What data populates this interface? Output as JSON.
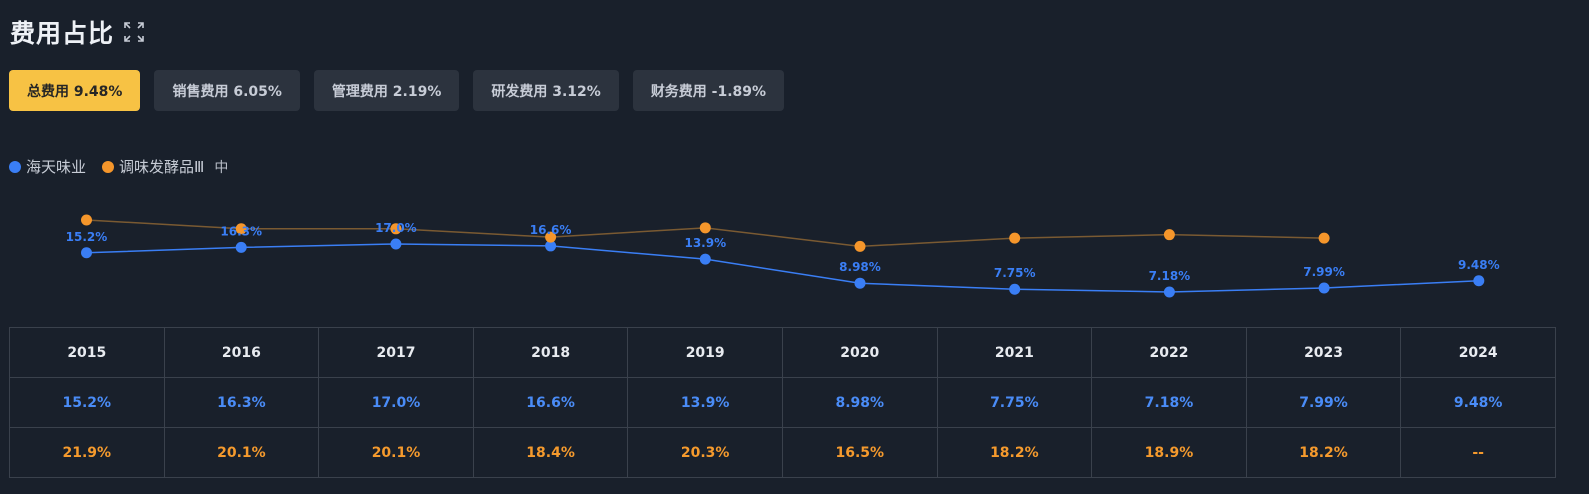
{
  "header": {
    "title": "费用占比",
    "expand_icon": "expand-icon"
  },
  "tabs": [
    {
      "label": "总费用 9.48%",
      "active": true
    },
    {
      "label": "销售费用 6.05%",
      "active": false
    },
    {
      "label": "管理费用 2.19%",
      "active": false
    },
    {
      "label": "研发费用 3.12%",
      "active": false
    },
    {
      "label": "财务费用 -1.89%",
      "active": false
    }
  ],
  "legend": {
    "items": [
      {
        "name": "海天味业",
        "color": "#3a7ef5"
      },
      {
        "name": "调味发酵品Ⅲ",
        "color": "#f5962b"
      }
    ],
    "extra_icon": "中"
  },
  "chart_data": {
    "type": "line",
    "x": [
      "2015",
      "2016",
      "2017",
      "2018",
      "2019",
      "2020",
      "2021",
      "2022",
      "2023",
      "2024"
    ],
    "series": [
      {
        "name": "海天味业",
        "color": "#3a7ef5",
        "values": [
          15.2,
          16.3,
          17.0,
          16.6,
          13.9,
          8.98,
          7.75,
          7.18,
          7.99,
          9.48
        ],
        "labels": [
          "15.2%",
          "16.3%",
          "17.0%",
          "16.6%",
          "13.9%",
          "8.98%",
          "7.75%",
          "7.18%",
          "7.99%",
          "9.48%"
        ]
      },
      {
        "name": "调味发酵品Ⅲ",
        "color": "#f5962b",
        "values": [
          21.9,
          20.1,
          20.1,
          18.4,
          20.3,
          16.5,
          18.2,
          18.9,
          18.2,
          null
        ],
        "labels": [
          "21.9%",
          "20.1%",
          "20.1%",
          "18.4%",
          "20.3%",
          "16.5%",
          "18.2%",
          "18.9%",
          "18.2%",
          "--"
        ]
      }
    ],
    "grid": false,
    "legend_position": "top-left"
  }
}
